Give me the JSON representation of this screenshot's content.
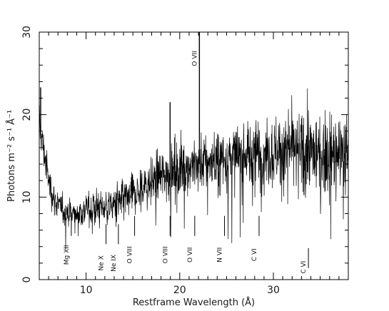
{
  "chart_data": {
    "type": "line",
    "xlabel": "Restframe Wavelength (Å)",
    "ylabel": "Photons m⁻² s⁻¹ Å⁻¹",
    "xlim": [
      5,
      38
    ],
    "ylim": [
      0,
      30
    ],
    "x_ticks": [
      10,
      20,
      30
    ],
    "y_ticks": [
      0,
      10,
      20,
      30
    ],
    "series": [
      {
        "x": [
          5.0,
          5.5,
          6.0,
          6.5,
          7.0,
          7.5,
          8.0,
          8.5,
          9.0,
          9.5,
          10.0,
          11.0,
          12.0,
          13.0,
          14.0,
          15.0,
          16.0,
          17.0,
          18.0,
          19.0,
          20.0,
          21.0,
          22.0,
          23.0,
          24.0,
          25.0,
          26.0,
          27.0,
          28.0,
          29.0,
          30.0,
          31.0,
          32.0,
          33.0,
          34.0,
          35.0,
          36.0,
          37.0,
          38.0
        ],
        "y": [
          19.0,
          15.5,
          12.0,
          10.0,
          9.0,
          8.5,
          8.2,
          8.0,
          8.0,
          8.2,
          8.5,
          8.7,
          8.8,
          9.0,
          9.5,
          10.2,
          11.0,
          11.8,
          12.5,
          13.0,
          13.5,
          13.8,
          14.0,
          14.2,
          14.4,
          14.6,
          14.8,
          15.0,
          15.2,
          15.4,
          15.5,
          15.6,
          15.6,
          15.5,
          15.4,
          15.3,
          15.2,
          15.1,
          15.0
        ],
        "noise": [
          2.2,
          2.0,
          1.8,
          1.6,
          1.6,
          1.6,
          1.6,
          1.6,
          1.6,
          1.7,
          1.8,
          1.9,
          2.0,
          2.1,
          2.2,
          2.3,
          2.4,
          2.5,
          2.6,
          2.7,
          2.8,
          2.9,
          3.0,
          3.1,
          3.2,
          3.3,
          3.4,
          3.5,
          3.6,
          3.7,
          3.8,
          3.9,
          4.0,
          4.1,
          4.2,
          4.3,
          4.4,
          4.5,
          4.6
        ]
      }
    ],
    "line_labels": [
      {
        "label": "Mg XII",
        "x": 8.42,
        "y_top": 5.3,
        "y_label": 3.0
      },
      {
        "label": "Ne X",
        "x": 12.13,
        "y_top": 4.3,
        "y_label": 2.0
      },
      {
        "label": "Ne IX",
        "x": 13.45,
        "y_top": 4.3,
        "y_label": 2.0
      },
      {
        "label": "O VIII",
        "x": 15.18,
        "y_top": 5.3,
        "y_label": 3.0
      },
      {
        "label": "O VIII",
        "x": 18.97,
        "y_top": 5.3,
        "y_label": 3.0
      },
      {
        "label": "O VII",
        "x": 21.6,
        "y_top": 5.3,
        "y_label": 3.0
      },
      {
        "label": "O VII",
        "x": 22.1,
        "y_top": 30.0,
        "y_label": 26.8
      },
      {
        "label": "N VII",
        "x": 24.78,
        "y_top": 5.3,
        "y_label": 3.0
      },
      {
        "label": "C VI",
        "x": 28.47,
        "y_top": 5.3,
        "y_label": 3.0
      },
      {
        "label": "C VI",
        "x": 33.74,
        "y_top": 1.4,
        "y_label": 1.5
      }
    ],
    "spikes": [
      {
        "x": 18.97,
        "y": 21.5
      },
      {
        "x": 22.1,
        "y": 30.0
      },
      {
        "x": 5.15,
        "y": 23.3
      }
    ]
  }
}
